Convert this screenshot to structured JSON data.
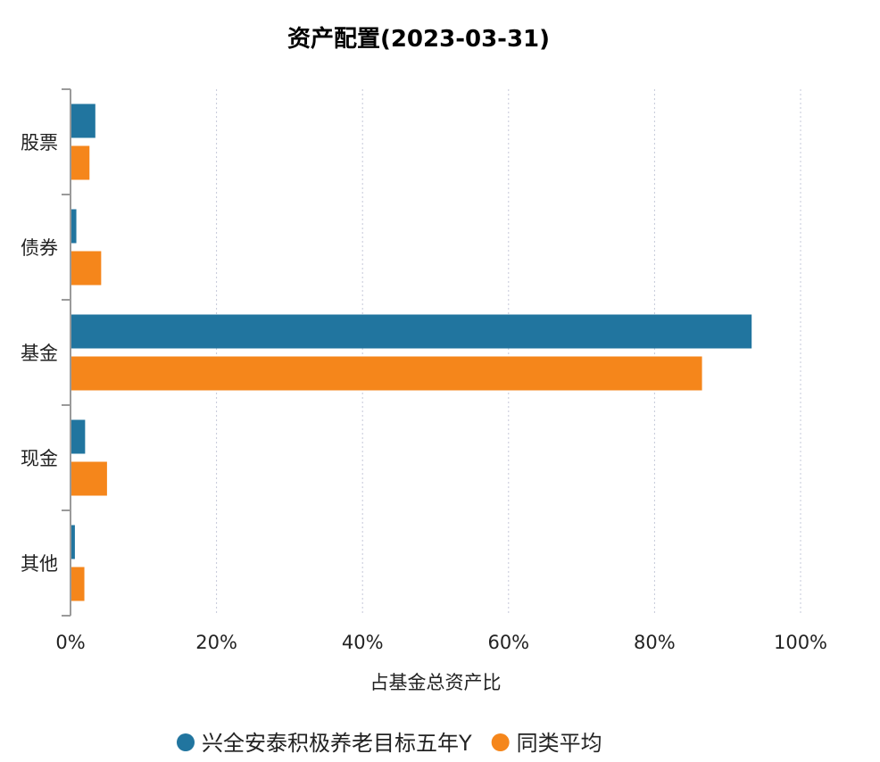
{
  "chart_data": {
    "type": "bar",
    "orientation": "horizontal",
    "title": "资产配置(2023-03-31)",
    "xlabel": "占基金总资产比",
    "ylabel": "",
    "categories": [
      "股票",
      "债券",
      "基金",
      "现金",
      "其他"
    ],
    "series": [
      {
        "name": "兴全安泰积极养老目标五年Y",
        "color": "#21759f",
        "values": [
          3.4,
          0.8,
          93.3,
          2.0,
          0.6
        ]
      },
      {
        "name": "同类平均",
        "color": "#f5861b",
        "values": [
          2.6,
          4.2,
          86.5,
          5.0,
          1.9
        ]
      }
    ],
    "xlim": [
      0,
      100
    ],
    "xticks": [
      "0%",
      "20%",
      "40%",
      "60%",
      "80%",
      "100%"
    ],
    "grid": "vertical-dotted",
    "legend_position": "bottom"
  }
}
